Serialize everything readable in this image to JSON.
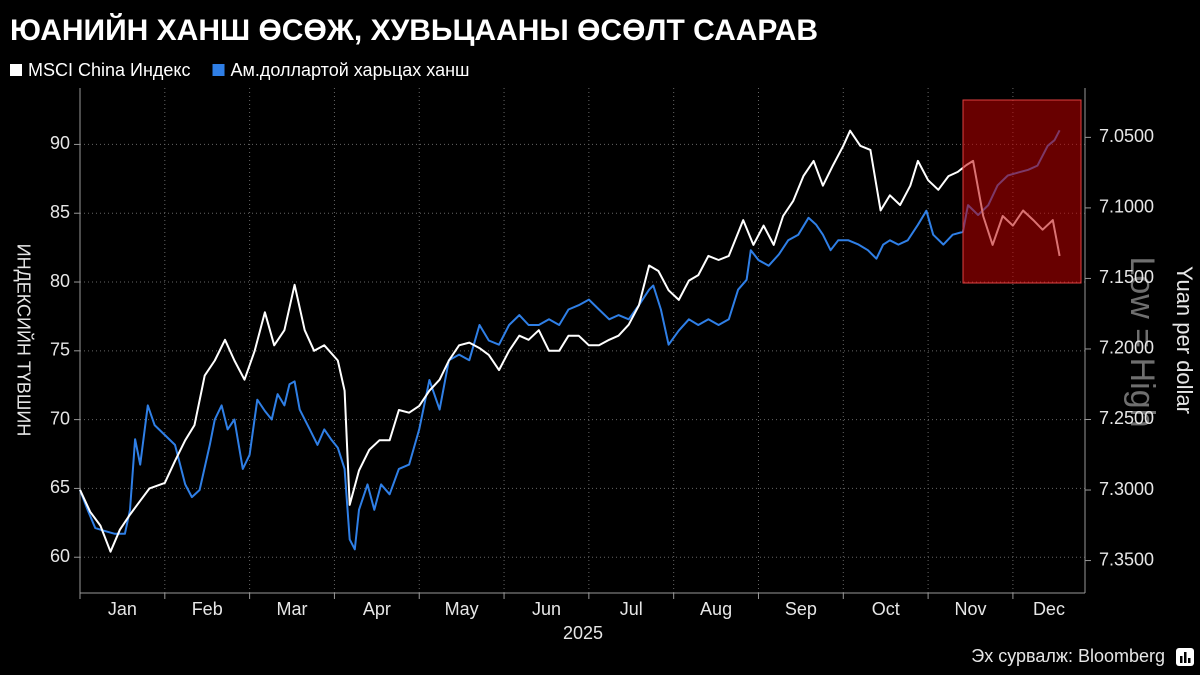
{
  "chart_data": {
    "type": "line",
    "title": "ЮАНИЙН ХАНШ ӨСӨЖ, ХУВЬЦААНЫ ӨСӨЛТ СААРАВ",
    "ylabel": "ИНДЕКСИЙН ТҮВШИН",
    "y2label": "Yuan per dollar",
    "annotation": "Low = High",
    "xlabel": "2025",
    "source": "Эх сурвалж: Bloomberg",
    "xlim": [
      1,
      12.85
    ],
    "xticks": [
      {
        "value": 1,
        "label": "Jan"
      },
      {
        "value": 2,
        "label": "Feb"
      },
      {
        "value": 3,
        "label": "Mar"
      },
      {
        "value": 4,
        "label": "Apr"
      },
      {
        "value": 5,
        "label": "May"
      },
      {
        "value": 6,
        "label": "Jun"
      },
      {
        "value": 7,
        "label": "Jul"
      },
      {
        "value": 8,
        "label": "Aug"
      },
      {
        "value": 9,
        "label": "Sep"
      },
      {
        "value": 10,
        "label": "Oct"
      },
      {
        "value": 11,
        "label": "Nov"
      },
      {
        "value": 12,
        "label": "Dec"
      }
    ],
    "ylim": [
      57.4,
      94.1
    ],
    "yticks": [
      60,
      65,
      70,
      75,
      80,
      85,
      90
    ],
    "y2lim": [
      7.015,
      7.373
    ],
    "y2_inverted": true,
    "y2ticks": [
      {
        "value": 7.05,
        "label": "7.0500"
      },
      {
        "value": 7.1,
        "label": "7.1000"
      },
      {
        "value": 7.15,
        "label": "7.1500"
      },
      {
        "value": 7.2,
        "label": "7.2000"
      },
      {
        "value": 7.25,
        "label": "7.2500"
      },
      {
        "value": 7.3,
        "label": "7.3000"
      },
      {
        "value": 7.35,
        "label": "7.3500"
      }
    ],
    "grid": true,
    "series": [
      {
        "name": "MSCI China Индекс",
        "color": "#ffffff",
        "axis": "y",
        "x": [
          1.0,
          1.12,
          1.24,
          1.36,
          1.47,
          1.59,
          1.71,
          1.82,
          2.0,
          2.12,
          2.24,
          2.35,
          2.47,
          2.59,
          2.71,
          2.82,
          2.94,
          3.06,
          3.18,
          3.29,
          3.41,
          3.53,
          3.65,
          3.76,
          3.88,
          4.04,
          4.12,
          4.18,
          4.29,
          4.41,
          4.53,
          4.65,
          4.76,
          4.88,
          5.0,
          5.12,
          5.24,
          5.35,
          5.47,
          5.59,
          5.71,
          5.82,
          5.94,
          6.06,
          6.18,
          6.29,
          6.41,
          6.53,
          6.65,
          6.76,
          6.88,
          7.0,
          7.12,
          7.24,
          7.35,
          7.47,
          7.59,
          7.71,
          7.82,
          7.94,
          8.06,
          8.18,
          8.29,
          8.41,
          8.53,
          8.65,
          8.82,
          8.94,
          9.06,
          9.18,
          9.29,
          9.41,
          9.53,
          9.65,
          9.76,
          9.88,
          10.0,
          10.08,
          10.2,
          10.32,
          10.44,
          10.55,
          10.67,
          10.79,
          10.88,
          11.0,
          11.12,
          11.24,
          11.35,
          11.45,
          11.53,
          11.65,
          11.76,
          11.88,
          12.0,
          12.12,
          12.24,
          12.35,
          12.47,
          12.55
        ],
        "values": [
          64.9,
          63.3,
          62.3,
          60.4,
          62.0,
          63.1,
          64.1,
          65.0,
          65.4,
          67.0,
          68.5,
          69.6,
          73.2,
          74.3,
          75.8,
          74.3,
          72.9,
          75.0,
          77.8,
          75.4,
          76.5,
          79.8,
          76.5,
          75.0,
          75.4,
          74.3,
          72.1,
          63.8,
          66.3,
          67.8,
          68.5,
          68.5,
          70.7,
          70.5,
          71.0,
          72.1,
          72.9,
          74.3,
          75.4,
          75.6,
          75.2,
          74.7,
          73.6,
          75.0,
          76.1,
          75.8,
          76.5,
          75.0,
          75.0,
          76.1,
          76.1,
          75.4,
          75.4,
          75.8,
          76.1,
          76.9,
          78.3,
          81.2,
          80.8,
          79.4,
          78.7,
          80.1,
          80.5,
          81.9,
          81.6,
          81.9,
          84.5,
          82.7,
          84.1,
          82.7,
          84.8,
          85.9,
          87.7,
          88.8,
          87.0,
          88.5,
          89.9,
          91.0,
          89.9,
          89.6,
          85.2,
          86.3,
          85.6,
          87.0,
          88.8,
          87.4,
          86.7,
          87.7,
          88.0,
          88.5,
          88.8,
          84.8,
          82.7,
          84.8,
          84.1,
          85.2,
          84.5,
          83.8,
          84.5,
          81.9
        ]
      },
      {
        "name": "Ам.доллартой харьцах ханш",
        "color": "#2f7fe6",
        "axis": "y2",
        "x": [
          1.0,
          1.09,
          1.18,
          1.29,
          1.41,
          1.53,
          1.59,
          1.65,
          1.71,
          1.8,
          1.88,
          2.0,
          2.12,
          2.24,
          2.32,
          2.41,
          2.53,
          2.59,
          2.67,
          2.74,
          2.82,
          2.92,
          3.0,
          3.09,
          3.18,
          3.26,
          3.33,
          3.41,
          3.47,
          3.53,
          3.59,
          3.71,
          3.8,
          3.88,
          3.96,
          4.04,
          4.12,
          4.18,
          4.24,
          4.29,
          4.39,
          4.47,
          4.55,
          4.65,
          4.76,
          4.88,
          5.0,
          5.12,
          5.24,
          5.35,
          5.47,
          5.59,
          5.71,
          5.82,
          5.94,
          6.06,
          6.18,
          6.29,
          6.41,
          6.53,
          6.65,
          6.76,
          6.88,
          7.0,
          7.12,
          7.24,
          7.35,
          7.47,
          7.59,
          7.71,
          7.76,
          7.85,
          7.94,
          8.06,
          8.18,
          8.29,
          8.41,
          8.53,
          8.65,
          8.76,
          8.86,
          8.91,
          9.0,
          9.12,
          9.24,
          9.35,
          9.47,
          9.59,
          9.68,
          9.76,
          9.85,
          9.94,
          10.06,
          10.18,
          10.29,
          10.39,
          10.47,
          10.55,
          10.65,
          10.76,
          10.88,
          10.98,
          11.06,
          11.18,
          11.29,
          11.41,
          11.47,
          11.59,
          11.71,
          11.82,
          11.94,
          12.06,
          12.18,
          12.29,
          12.41,
          12.49,
          12.55
        ],
        "values": [
          7.3,
          7.314,
          7.327,
          7.329,
          7.331,
          7.331,
          7.314,
          7.264,
          7.282,
          7.24,
          7.254,
          7.261,
          7.268,
          7.296,
          7.305,
          7.3,
          7.268,
          7.25,
          7.24,
          7.257,
          7.25,
          7.285,
          7.275,
          7.236,
          7.244,
          7.25,
          7.232,
          7.24,
          7.225,
          7.223,
          7.243,
          7.257,
          7.268,
          7.257,
          7.264,
          7.27,
          7.285,
          7.335,
          7.342,
          7.314,
          7.296,
          7.314,
          7.296,
          7.303,
          7.285,
          7.282,
          7.257,
          7.222,
          7.243,
          7.208,
          7.204,
          7.208,
          7.183,
          7.194,
          7.197,
          7.183,
          7.176,
          7.183,
          7.183,
          7.179,
          7.183,
          7.172,
          7.169,
          7.165,
          7.172,
          7.179,
          7.176,
          7.179,
          7.169,
          7.158,
          7.155,
          7.172,
          7.197,
          7.187,
          7.179,
          7.183,
          7.179,
          7.183,
          7.179,
          7.158,
          7.151,
          7.13,
          7.137,
          7.141,
          7.133,
          7.123,
          7.119,
          7.107,
          7.112,
          7.119,
          7.13,
          7.123,
          7.123,
          7.126,
          7.13,
          7.136,
          7.126,
          7.123,
          7.126,
          7.123,
          7.112,
          7.102,
          7.119,
          7.126,
          7.119,
          7.117,
          7.098,
          7.105,
          7.098,
          7.084,
          7.077,
          7.075,
          7.073,
          7.07,
          7.056,
          7.052,
          7.045
        ]
      }
    ]
  }
}
